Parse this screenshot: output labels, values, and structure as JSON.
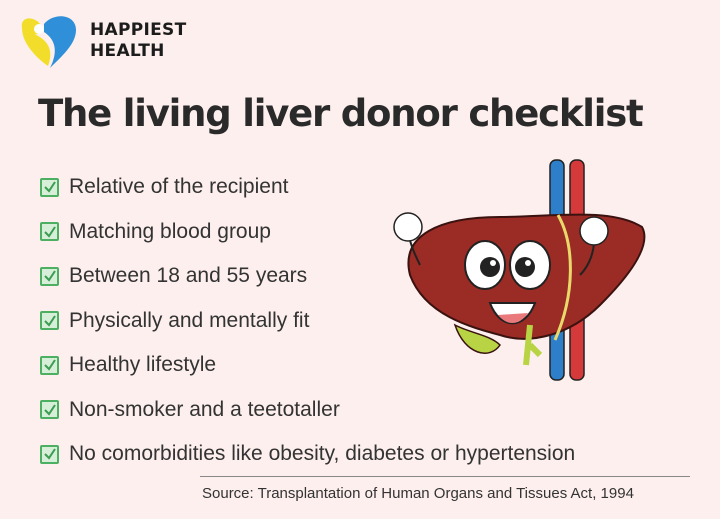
{
  "brand": {
    "name_line1": "HAPPIEST",
    "name_line2": "HEALTH"
  },
  "title": "The living liver donor checklist",
  "checklist": [
    {
      "label": "Relative of the recipient",
      "checked": true
    },
    {
      "label": "Matching blood group",
      "checked": true
    },
    {
      "label": "Between 18 and 55 years",
      "checked": true
    },
    {
      "label": "Physically and mentally fit",
      "checked": true
    },
    {
      "label": "Healthy lifestyle",
      "checked": true
    },
    {
      "label": "Non-smoker and a teetotaller",
      "checked": true
    },
    {
      "label": "No comorbidities like obesity, diabetes or hypertension",
      "checked": true
    }
  ],
  "source": "Source: Transplantation of Human Organs and Tissues Act, 1994",
  "colors": {
    "background": "#fcefed",
    "check": "#4caf62",
    "liver": "#9b2b25"
  }
}
